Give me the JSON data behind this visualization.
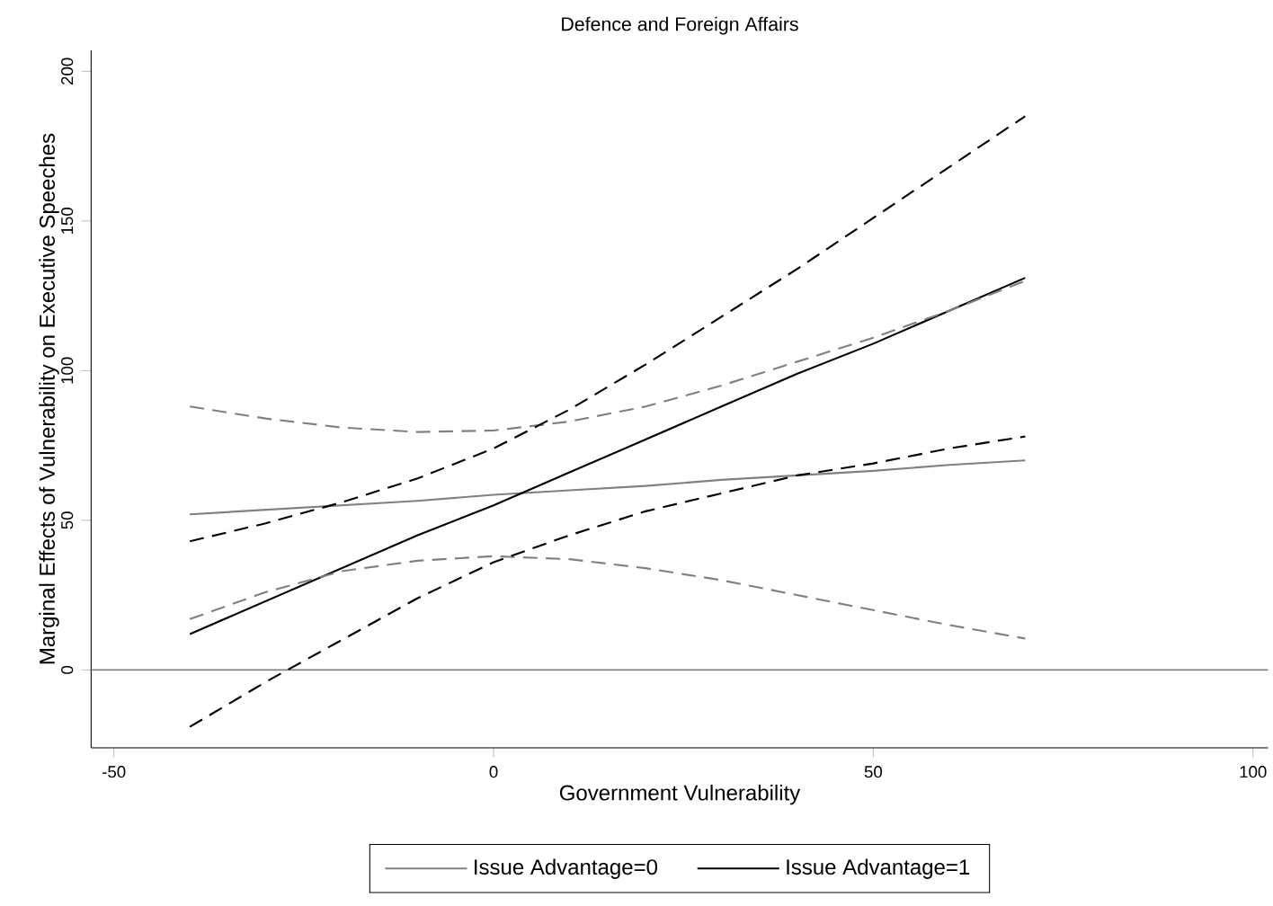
{
  "chart_data": {
    "type": "line",
    "title": "Defence and Foreign Affairs",
    "xlabel": "Government Vulnerability",
    "ylabel": "Marginal Effects of Vulnerability on Executive Speeches",
    "x": [
      -40,
      -30,
      -20,
      -10,
      0,
      10,
      20,
      30,
      40,
      50,
      60,
      70
    ],
    "series": [
      {
        "name": "Issue Advantage=0",
        "color": "#808080",
        "line_style": "solid",
        "values": [
          52,
          53.5,
          55,
          56.5,
          58.5,
          60,
          61.5,
          63.5,
          65,
          66.5,
          68.5,
          70
        ]
      },
      {
        "name": "Issue Advantage=1",
        "color": "#000000",
        "line_style": "solid",
        "values": [
          12,
          23,
          34,
          45,
          55,
          66,
          77,
          88,
          99,
          109,
          120,
          131
        ]
      },
      {
        "color": "#808080",
        "line_style": "dashed",
        "values": [
          88,
          84,
          81,
          79.5,
          80,
          83,
          88,
          95,
          103,
          111,
          120,
          130
        ]
      },
      {
        "color": "#808080",
        "line_style": "dashed",
        "values": [
          17,
          26,
          33,
          36.5,
          38,
          37,
          34,
          30,
          25,
          20,
          15,
          10.5
        ]
      },
      {
        "color": "#000000",
        "line_style": "dashed",
        "values": [
          43,
          49,
          56,
          64,
          74,
          87,
          102,
          118,
          134,
          151,
          168,
          185
        ]
      },
      {
        "color": "#000000",
        "line_style": "dashed",
        "values": [
          -19,
          -4,
          10,
          24,
          36,
          45,
          53,
          59,
          65,
          69,
          74,
          78
        ]
      }
    ],
    "xlim": [
      -53,
      102
    ],
    "ylim": [
      -26,
      207
    ],
    "xticks": [
      -50,
      0,
      50,
      100
    ],
    "yticks": [
      0,
      50,
      100,
      150,
      200
    ],
    "ref_lines": [
      {
        "axis": "y",
        "value": 0,
        "color": "#808080"
      }
    ],
    "grid": false,
    "legend": "bottom"
  }
}
